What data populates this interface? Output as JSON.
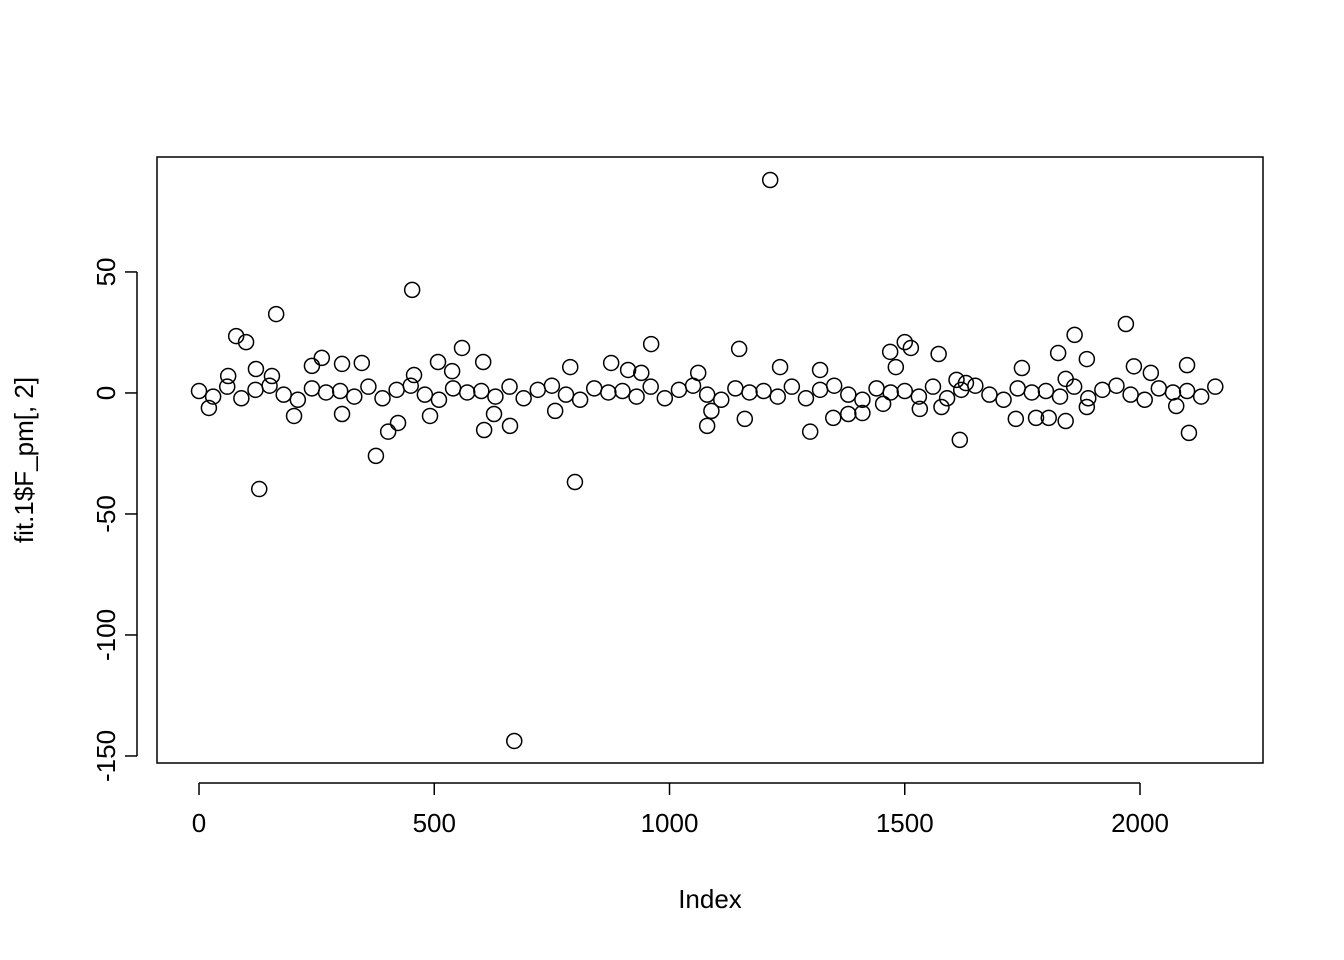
{
  "chart_data": {
    "type": "scatter",
    "x_label": "Index",
    "y_label": "fit.1$F_pm[, 2]",
    "x": [
      0,
      30,
      60,
      90,
      120,
      150,
      180,
      210,
      240,
      270,
      300,
      330,
      360,
      390,
      420,
      450,
      480,
      510,
      540,
      570,
      600,
      630,
      660,
      690,
      720,
      750,
      780,
      810,
      840,
      870,
      900,
      930,
      960,
      990,
      1020,
      1050,
      1080,
      1110,
      1140,
      1170,
      1200,
      1230,
      1260,
      1290,
      1320,
      1350,
      1380,
      1410,
      1440,
      1470,
      1500,
      1530,
      1560,
      1590,
      1620,
      1650,
      1680,
      1710,
      1740,
      1770,
      1800,
      1830,
      1860,
      1890,
      1920,
      1950,
      1980,
      2010,
      2040,
      2070,
      2100,
      2130,
      2160,
      79,
      100,
      128,
      164,
      453,
      376,
      559,
      670,
      799,
      961,
      1214,
      1148,
      1299,
      1469,
      1500,
      1513,
      1572,
      1617,
      1861,
      1970,
      2104,
      2100,
      1887,
      1826,
      1987,
      402,
      423,
      606,
      661,
      604,
      508,
      346,
      261,
      304,
      202,
      304,
      21,
      491,
      627,
      757,
      876,
      789,
      1080,
      1160,
      1089,
      1235,
      1348,
      1380,
      1410,
      1454,
      1578,
      1532,
      1736,
      1779,
      1806,
      1842,
      1887,
      2077,
      2023,
      1749,
      1610,
      912,
      940,
      1481,
      1320,
      121,
      62,
      155,
      240,
      457,
      538,
      1061,
      1842,
      1630
    ],
    "values": [
      0.8,
      -1.5,
      2.6,
      -2.2,
      1.3,
      3.0,
      -0.7,
      -2.8,
      1.9,
      0.2,
      0.8,
      -1.5,
      2.6,
      -2.2,
      1.3,
      3.0,
      -0.7,
      -2.8,
      1.9,
      0.2,
      0.8,
      -1.5,
      2.6,
      -2.2,
      1.3,
      3.0,
      -0.7,
      -2.8,
      1.9,
      0.2,
      0.8,
      -1.5,
      2.6,
      -2.2,
      1.3,
      3.0,
      -0.7,
      -2.8,
      1.9,
      0.2,
      0.8,
      -1.5,
      2.6,
      -2.2,
      1.3,
      3.0,
      -0.7,
      -2.8,
      1.9,
      0.2,
      0.8,
      -1.5,
      2.6,
      -2.2,
      1.3,
      3.0,
      -0.7,
      -2.8,
      1.9,
      0.2,
      0.8,
      -1.5,
      2.6,
      -2.2,
      1.3,
      3.0,
      -0.7,
      -2.8,
      1.9,
      0.2,
      0.8,
      -1.5,
      2.6,
      23.5,
      21,
      -39.7,
      32.6,
      42.6,
      -26,
      18.6,
      -143.8,
      -36.8,
      20.2,
      88,
      18.2,
      -16,
      17,
      21,
      18.6,
      16.1,
      -19.4,
      24,
      28.5,
      -16.5,
      11.5,
      14,
      16.5,
      11,
      -16,
      -12.4,
      -15.3,
      -13.6,
      12.8,
      12.8,
      12.4,
      14.5,
      12,
      -9.5,
      -8.7,
      -6.2,
      -9.5,
      -8.7,
      -7.4,
      12.4,
      10.7,
      -13.6,
      -10.7,
      -7.4,
      10.7,
      -10.3,
      -8.7,
      -8.3,
      -4.5,
      -5.8,
      -6.6,
      -10.7,
      -10.3,
      -10.3,
      -11.6,
      -5.8,
      -5.4,
      8.3,
      10.3,
      5.4,
      9.5,
      8.3,
      10.7,
      9.5,
      9.9,
      7,
      7,
      11.2,
      7.4,
      9,
      8.3,
      5.8,
      4.1
    ],
    "color": "#000000",
    "xlim": [
      -89.3,
      2261.4
    ],
    "xticks": [
      0,
      500,
      1000,
      1500,
      2000
    ],
    "ylim": [
      -152.9,
      97.5
    ],
    "yticks": [
      -150,
      -100,
      -50,
      0,
      50
    ],
    "grid": false
  }
}
